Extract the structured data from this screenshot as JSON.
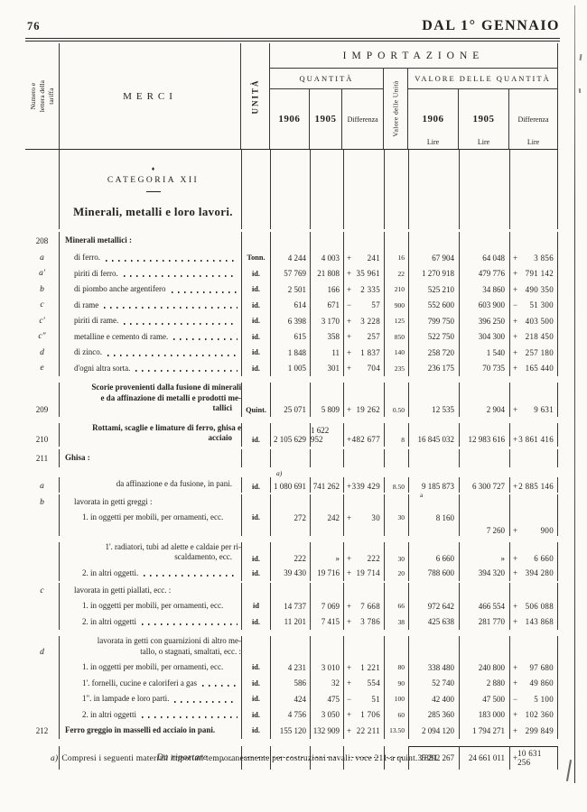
{
  "page": {
    "number": "76",
    "running_head": "DAL 1° GENNAIO"
  },
  "header": {
    "tariff_col": "Numero e lettera della tariffa",
    "merci": "MERCI",
    "unit": "UNITÀ",
    "importazione": "IMPORTAZIONE",
    "quantita": "QUANTITÀ",
    "valore_unita": "Valore delle Unità",
    "valore_quantita": "VALORE DELLE QUANTITÀ",
    "year1": "1906",
    "year2": "1905",
    "differenza": "Differenza",
    "lire": "Lire"
  },
  "category": {
    "ornament": "♦",
    "title": "CATEGORIA XII",
    "subtitle": "Minerali, metalli e loro lavori."
  },
  "rows": [
    {
      "t": "category"
    },
    {
      "t": "section",
      "num": "208",
      "bold": true,
      "ind": 0,
      "label": "Minerali metallici :"
    },
    {
      "t": "item",
      "letter": "a",
      "ind": 1,
      "label": "di ferro.",
      "leader": true,
      "unit": "Tonn.",
      "q1": "4 244",
      "q2": "4 003",
      "qs": "+",
      "qd": "241",
      "vu": "16",
      "v1": "67 904",
      "v2": "64 048",
      "vs": "+",
      "vd": "3 856"
    },
    {
      "t": "item",
      "letter": "a'",
      "ind": 1,
      "label": "piriti di ferro.",
      "leader": true,
      "unit": "id.",
      "q1": "57 769",
      "q2": "21 808",
      "qs": "+",
      "qd": "35 961",
      "vu": "22",
      "v1": "1 270 918",
      "v2": "479 776",
      "vs": "+",
      "vd": "791 142"
    },
    {
      "t": "item",
      "letter": "b",
      "ind": 1,
      "label": "di piombo anche argentifero",
      "leader": true,
      "unit": "id.",
      "q1": "2 501",
      "q2": "166",
      "qs": "+",
      "qd": "2 335",
      "vu": "210",
      "v1": "525 210",
      "v2": "34 860",
      "vs": "+",
      "vd": "490 350"
    },
    {
      "t": "item",
      "letter": "c",
      "ind": 1,
      "label": "di rame",
      "leader": true,
      "unit": "id.",
      "q1": "614",
      "q2": "671",
      "qs": "−",
      "qd": "57",
      "vu": "900",
      "v1": "552 600",
      "v2": "603 900",
      "vs": "−",
      "vd": "51 300"
    },
    {
      "t": "item",
      "letter": "c'",
      "ind": 1,
      "label": "piriti di rame.",
      "leader": true,
      "unit": "id.",
      "q1": "6 398",
      "q2": "3 170",
      "qs": "+",
      "qd": "3 228",
      "vu": "125",
      "v1": "799 750",
      "v2": "396 250",
      "vs": "+",
      "vd": "403 500"
    },
    {
      "t": "item",
      "letter": "c\"",
      "ind": 1,
      "label": "metalline e cemento di rame.",
      "leader": true,
      "unit": "id.",
      "q1": "615",
      "q2": "358",
      "qs": "+",
      "qd": "257",
      "vu": "850",
      "v1": "522 750",
      "v2": "304 300",
      "vs": "+",
      "vd": "218 450"
    },
    {
      "t": "item",
      "letter": "d",
      "ind": 1,
      "label": "di zinco.",
      "leader": true,
      "unit": "id.",
      "q1": "1 848",
      "q2": "11",
      "qs": "+",
      "qd": "1 837",
      "vu": "140",
      "v1": "258 720",
      "v2": "1 540",
      "vs": "+",
      "vd": "257 180"
    },
    {
      "t": "item",
      "letter": "e",
      "ind": 1,
      "label": "d'ogni altra sorta.",
      "leader": true,
      "unit": "id.",
      "q1": "1 005",
      "q2": "301",
      "qs": "+",
      "qd": "704",
      "vu": "235",
      "v1": "236 175",
      "v2": "70 735",
      "vs": "+",
      "vd": "165 440"
    },
    {
      "t": "item",
      "num": "209",
      "bold": true,
      "ml": true,
      "ind": 0,
      "lines": [
        "Scorie provenienti dalla fusione di  minerali",
        "e da affinazione di metalli e prodotti me-",
        "tallici"
      ],
      "leader": true,
      "unit": "Quint.",
      "q1": "25 071",
      "q2": "5 809",
      "qs": "+",
      "qd": "19 262",
      "vu": "0.50",
      "v1": "12 535",
      "v2": "2 904",
      "vs": "+",
      "vd": "9 631"
    },
    {
      "t": "item",
      "num": "210",
      "bold": true,
      "ml": true,
      "ind": 0,
      "lines": [
        "Rottami, scaglie e limature di ferro, ghisa e",
        "acciaio"
      ],
      "leader": true,
      "unit": "id.",
      "q1": "2 105 629",
      "q2": "1 622 952",
      "qs": "+",
      "qd": "482 677",
      "vu": "8",
      "v1": "16 845 032",
      "v2": "12 983 616",
      "vs": "+",
      "vd": "3 861 416"
    },
    {
      "t": "section",
      "num": "211",
      "bold": true,
      "ind": 0,
      "label": "Ghisa :"
    },
    {
      "t": "item",
      "letter": "a",
      "ind": 1,
      "label": "da affinazione e da fusione, in pani.",
      "leader": true,
      "unit": "id.",
      "noteq": "a)",
      "q1": "1 080 691",
      "q2": "741 262",
      "qs": "+",
      "qd": "339 429",
      "vu": "8.50",
      "v1": "9 185 873",
      "notev": "a",
      "v2": "6 300 727",
      "vs": "+",
      "vd": "2 885 146"
    },
    {
      "t": "group",
      "letter": "b",
      "ind": 1,
      "label": "lavorata in getti greggi :"
    },
    {
      "t": "item",
      "ind": 2,
      "label": "1. in oggetti per mobili, per ornamenti, ecc.",
      "unit": "id.",
      "q1": "272",
      "q2": "242",
      "qs": "+",
      "qd": "30",
      "vu": "30",
      "v1": "8 160"
    },
    {
      "t": "inter",
      "v2": "7 260",
      "vs": "+",
      "vd": "900"
    },
    {
      "t": "item",
      "ind": 2,
      "ml": true,
      "lines": [
        "1'. radiatori, tubi ad alette e caldaie per ri-",
        "scaldamento, ecc."
      ],
      "leader": true,
      "unit": "id.",
      "q1": "222",
      "q2": "»",
      "qs": "+",
      "qd": "222",
      "vu": "30",
      "v1": "6 660",
      "v2": "»",
      "vs": "+",
      "vd": "6 660"
    },
    {
      "t": "item",
      "ind": 2,
      "label": "2. in altri oggetti.",
      "leader": true,
      "unit": "id.",
      "q1": "39 430",
      "q2": "19 716",
      "qs": "+",
      "qd": "19 714",
      "vu": "20",
      "v1": "788 600",
      "v2": "394 320",
      "vs": "+",
      "vd": "394 280"
    },
    {
      "t": "group",
      "letter": "c",
      "ind": 1,
      "label": "lavorata in getti piallati, ecc. :"
    },
    {
      "t": "item",
      "ind": 2,
      "label": "1. in oggetti per mobili, per ornamenti, ecc.",
      "unit": "id",
      "q1": "14 737",
      "q2": "7 069",
      "qs": "+",
      "qd": "7 668",
      "vu": "66",
      "v1": "972 642",
      "v2": "466 554",
      "vs": "+",
      "vd": "506 088"
    },
    {
      "t": "item",
      "ind": 2,
      "label": "2. in altri oggetti",
      "leader": true,
      "unit": "id.",
      "q1": "11 201",
      "q2": "7 415",
      "qs": "+",
      "qd": "3 786",
      "vu": "38",
      "v1": "425 638",
      "v2": "281 770",
      "vs": "+",
      "vd": "143 868"
    },
    {
      "t": "group",
      "letter": "d",
      "ind": 1,
      "ml": true,
      "lines": [
        "lavorata in getti con guarnizioni di altro me-",
        "tallo, o stagnati, smaltati, ecc. :"
      ]
    },
    {
      "t": "item",
      "ind": 2,
      "label": "1. in oggetti per mobili, per ornamenti, ecc.",
      "unit": "id.",
      "q1": "4 231",
      "q2": "3 010",
      "qs": "+",
      "qd": "1 221",
      "vu": "80",
      "v1": "338 480",
      "v2": "240 800",
      "vs": "+",
      "vd": "97 680"
    },
    {
      "t": "item",
      "ind": 2,
      "label": "1'. fornelli, cucine e caloriferi a gas",
      "leader": true,
      "unit": "id.",
      "q1": "586",
      "q2": "32",
      "qs": "+",
      "qd": "554",
      "vu": "90",
      "v1": "52 740",
      "v2": "2 880",
      "vs": "+",
      "vd": "49 860"
    },
    {
      "t": "item",
      "ind": 2,
      "label": "1\". in lampade e loro parti.",
      "leader": true,
      "unit": "id.",
      "q1": "424",
      "q2": "475",
      "qs": "−",
      "qd": "51",
      "vu": "100",
      "v1": "42 400",
      "v2": "47 500",
      "vs": "−",
      "vd": "5 100"
    },
    {
      "t": "item",
      "ind": 2,
      "label": "2. in altri oggetti",
      "leader": true,
      "unit": "id.",
      "q1": "4 756",
      "q2": "3 050",
      "qs": "+",
      "qd": "1 706",
      "vu": "60",
      "v1": "285 360",
      "v2": "183 000",
      "vs": "+",
      "vd": "102 360"
    },
    {
      "t": "item",
      "num": "212",
      "bold": true,
      "ind": 0,
      "label": "Ferro greggio in masselli ed acciaio in pani.",
      "unit": "id.",
      "q1": "155 120",
      "q2": "132 909",
      "qs": "+",
      "qd": "22 211",
      "vu": "13.50",
      "v1": "2 094 120",
      "v2": "1 794 271",
      "vs": "+",
      "vd": "299 849"
    },
    {
      "t": "totals"
    }
  ],
  "totals": {
    "label": "Da riportare",
    "dots": ". . .",
    "v1": "35 292 267",
    "v2": "24 661 011",
    "vs": "+",
    "vd": "10 631 256"
  },
  "footnote": {
    "marker": "a)",
    "text": "Compresi i seguenti materiali importati temporaneamente per costruzioni navali: voce 211-a quint. 1881."
  }
}
